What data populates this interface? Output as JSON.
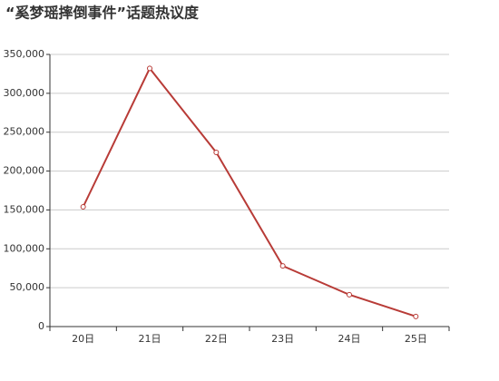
{
  "chart_data": {
    "type": "line",
    "title": "“奚梦瑶摔倒事件”话题热议度",
    "categories": [
      "20日",
      "21日",
      "22日",
      "23日",
      "24日",
      "25日"
    ],
    "series": [
      {
        "color": "#b83b37",
        "values": [
          154000,
          332000,
          224000,
          78000,
          41000,
          13000
        ]
      }
    ],
    "ylim": [
      0,
      350000
    ],
    "yticks": [
      0,
      {
        "value": 50000,
        "label": "50,000"
      },
      {
        "value": 100000,
        "label": "100,000"
      },
      {
        "value": 150000,
        "label": "150,000"
      },
      {
        "value": 200000,
        "label": "200,000"
      },
      {
        "value": 250000,
        "label": "250,000"
      },
      {
        "value": 300000,
        "label": "300,000"
      },
      {
        "value": 350000,
        "label": "350,000"
      }
    ],
    "grid": true
  }
}
